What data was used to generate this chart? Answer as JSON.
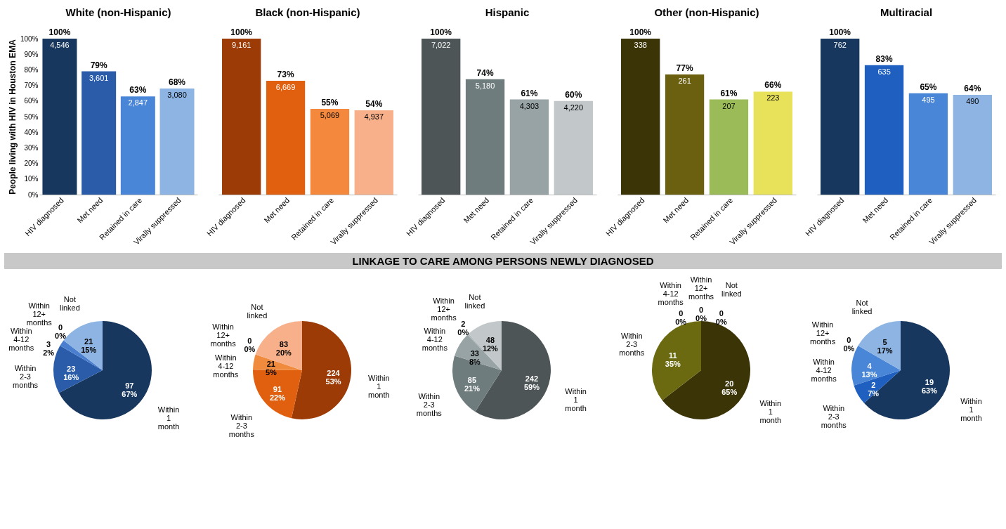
{
  "chart_data": [
    {
      "type": "bar",
      "title": "White (non-Hispanic)",
      "ylabel": "People living with HIV in Houston EMA",
      "categories": [
        "HIV diagnosed",
        "Met need",
        "Retained in care",
        "Virally suppressed"
      ],
      "values": [
        100,
        79,
        63,
        68
      ],
      "colors": [
        "#17375e",
        "#2a5caa",
        "#4a86d8",
        "#8db4e2"
      ],
      "ylim": [
        0,
        100
      ],
      "yticks": [
        {
          "value": 0,
          "label": "0%"
        },
        {
          "value": 10,
          "label": "10%"
        },
        {
          "value": 20,
          "label": "20%"
        },
        {
          "value": 30,
          "label": "30%"
        },
        {
          "value": 40,
          "label": "40%"
        },
        {
          "value": 50,
          "label": "50%"
        },
        {
          "value": 60,
          "label": "60%"
        },
        {
          "value": 70,
          "label": "70%"
        },
        {
          "value": 80,
          "label": "80%"
        },
        {
          "value": 90,
          "label": "90%"
        },
        {
          "value": 100,
          "label": "100%"
        }
      ],
      "value_labels": [
        "100%",
        "79%",
        "63%",
        "68%"
      ],
      "annotations": [
        {
          "text": "4,546",
          "x": "HIV diagnosed",
          "y": 100
        },
        {
          "text": "3,601",
          "x": "Met need",
          "y": 79
        },
        {
          "text": "2,847",
          "x": "Retained in care",
          "y": 63
        },
        {
          "text": "3,080",
          "x": "Virally suppressed",
          "y": 68
        }
      ]
    },
    {
      "type": "bar",
      "title": "Black (non-Hispanic)",
      "categories": [
        "HIV diagnosed",
        "Met need",
        "Retained in care",
        "Virally suppressed"
      ],
      "values": [
        100,
        73,
        55,
        54
      ],
      "colors": [
        "#9c3b06",
        "#e0600f",
        "#f4883d",
        "#f7b08a"
      ],
      "ylim": [
        0,
        100
      ],
      "tick_labels": "x",
      "value_labels": [
        "100%",
        "73%",
        "55%",
        "54%"
      ],
      "annotations": [
        {
          "text": "9,161",
          "x": "HIV diagnosed",
          "y": 100
        },
        {
          "text": "6,669",
          "x": "Met need",
          "y": 73
        },
        {
          "text": "5,069",
          "x": "Retained in care",
          "y": 55
        },
        {
          "text": "4,937",
          "x": "Virally suppressed",
          "y": 54
        }
      ]
    },
    {
      "type": "bar",
      "title": "Hispanic",
      "categories": [
        "HIV diagnosed",
        "Met need",
        "Retained in care",
        "Virally suppressed"
      ],
      "values": [
        100,
        74,
        61,
        60
      ],
      "colors": [
        "#4d5557",
        "#6f7c7e",
        "#97a3a5",
        "#c2c8ca"
      ],
      "ylim": [
        0,
        100
      ],
      "tick_labels": "x",
      "value_labels": [
        "100%",
        "74%",
        "61%",
        "60%"
      ],
      "annotations": [
        {
          "text": "7,022",
          "x": "HIV diagnosed",
          "y": 100
        },
        {
          "text": "5,180",
          "x": "Met need",
          "y": 74
        },
        {
          "text": "4,303",
          "x": "Retained in care",
          "y": 61
        },
        {
          "text": "4,220",
          "x": "Virally suppressed",
          "y": 60
        }
      ]
    },
    {
      "type": "bar",
      "title": "Other (non-Hispanic)",
      "categories": [
        "HIV diagnosed",
        "Met need",
        "Retained in care",
        "Virally suppressed"
      ],
      "values": [
        100,
        77,
        61,
        66
      ],
      "colors": [
        "#3b3407",
        "#6b5f10",
        "#9bbb59",
        "#e8e15a"
      ],
      "ylim": [
        0,
        100
      ],
      "tick_labels": "x",
      "value_labels": [
        "100%",
        "77%",
        "61%",
        "66%"
      ],
      "annotations": [
        {
          "text": "338",
          "x": "HIV diagnosed",
          "y": 100
        },
        {
          "text": "261",
          "x": "Met need",
          "y": 77
        },
        {
          "text": "207",
          "x": "Retained in care",
          "y": 61
        },
        {
          "text": "223",
          "x": "Virally suppressed",
          "y": 66
        }
      ]
    },
    {
      "type": "bar",
      "title": "Multiracial",
      "categories": [
        "HIV diagnosed",
        "Met need",
        "Retained in care",
        "Virally suppressed"
      ],
      "values": [
        100,
        83,
        65,
        64
      ],
      "colors": [
        "#17375e",
        "#1f5fbf",
        "#4a86d8",
        "#8db4e2"
      ],
      "ylim": [
        0,
        100
      ],
      "tick_labels": "x",
      "value_labels": [
        "100%",
        "83%",
        "65%",
        "64%"
      ],
      "annotations": [
        {
          "text": "762",
          "x": "HIV diagnosed",
          "y": 100
        },
        {
          "text": "635",
          "x": "Met need",
          "y": 83
        },
        {
          "text": "495",
          "x": "Retained in care",
          "y": 65
        },
        {
          "text": "490",
          "x": "Virally suppressed",
          "y": 64
        }
      ]
    },
    {
      "type": "pie",
      "annotations": [
        "LINKAGE TO CARE AMONG PERSONS NEWLY DIAGNOSED"
      ],
      "categories": [
        "Within 1 month",
        "Within 2-3 months",
        "Within 4-12 months",
        "Within 12+ months",
        "Not linked"
      ],
      "values": [
        97,
        23,
        3,
        0,
        21
      ],
      "colors": [
        "#17375e",
        "#2a5caa",
        "#4a7fd0",
        "#6f9ee0",
        "#8db4e2"
      ],
      "value_labels": [
        "97\n67%",
        "23\n16%",
        "3\n2%",
        "0\n0%",
        "21\n15%"
      ]
    },
    {
      "type": "pie",
      "categories": [
        "Within 1 month",
        "Within 2-3 months",
        "Within 4-12 months",
        "Within 12+ months",
        "Not linked"
      ],
      "values": [
        224,
        91,
        21,
        0,
        83
      ],
      "colors": [
        "#9c3b06",
        "#e0600f",
        "#f08a3c",
        "#f3a56a",
        "#f7b08a"
      ],
      "value_labels": [
        "224\n53%",
        "91\n22%",
        "21\n5%",
        "0\n0%",
        "83\n20%"
      ]
    },
    {
      "type": "pie",
      "categories": [
        "Within 1 month",
        "Within 2-3 months",
        "Within 4-12 months",
        "Within 12+ months",
        "Not linked"
      ],
      "values": [
        242,
        85,
        33,
        2,
        48
      ],
      "colors": [
        "#4d5557",
        "#6f7c7e",
        "#97a3a5",
        "#b0b8ba",
        "#c2c8ca"
      ],
      "value_labels": [
        "242\n59%",
        "85\n21%",
        "33\n8%",
        "2\n0%",
        "48\n12%"
      ]
    },
    {
      "type": "pie",
      "categories": [
        "Within 1 month",
        "Within 2-3 months",
        "Within 4-12 months",
        "Within 12+ months",
        "Not linked"
      ],
      "values": [
        20,
        11,
        0,
        0,
        0
      ],
      "colors": [
        "#3b3407",
        "#6b6a10",
        "#9bbb59",
        "#c9cf60",
        "#e8e15a"
      ],
      "value_labels": [
        "20\n65%",
        "11\n35%",
        "0\n0%",
        "0\n0%",
        "0\n0%"
      ]
    },
    {
      "type": "pie",
      "categories": [
        "Within 1 month",
        "Within 2-3 months",
        "Within 4-12 months",
        "Within 12+ months",
        "Not linked"
      ],
      "values": [
        19,
        2,
        4,
        0,
        5
      ],
      "colors": [
        "#17375e",
        "#1f5fbf",
        "#4a86d8",
        "#6f9ee0",
        "#8db4e2"
      ],
      "value_labels": [
        "19\n63%",
        "2\n7%",
        "4\n13%",
        "0\n0%",
        "5\n17%"
      ]
    }
  ]
}
